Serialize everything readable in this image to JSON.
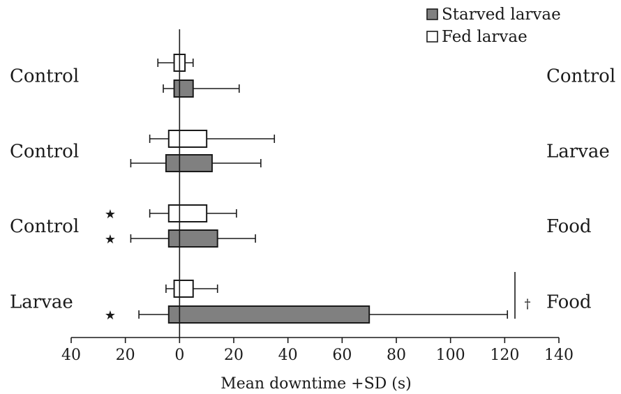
{
  "chart_data": {
    "type": "bar",
    "orientation": "horizontal",
    "xlabel": "Mean downtime +SD (s)",
    "x_ticks": [
      -40,
      -20,
      0,
      20,
      40,
      60,
      80,
      100,
      120,
      140
    ],
    "x_tick_labels": [
      "40",
      "20",
      "0",
      "20",
      "40",
      "60",
      "80",
      "100",
      "120",
      "140"
    ],
    "xlim": [
      -40,
      140
    ],
    "legend": [
      {
        "name": "Starved larvae",
        "fill": "#808080"
      },
      {
        "name": "Fed larvae",
        "fill": "#ffffff"
      }
    ],
    "groups": [
      {
        "left_label": "Control",
        "right_label": "Control",
        "fed": {
          "left": -2,
          "right": 2,
          "err_left": -8,
          "err_right": 5
        },
        "starved": {
          "left": -2,
          "right": 5,
          "err_left": -6,
          "err_right": 22
        }
      },
      {
        "left_label": "Control",
        "right_label": "Larvae",
        "fed": {
          "left": -4,
          "right": 10,
          "err_left": -11,
          "err_right": 35
        },
        "starved": {
          "left": -5,
          "right": 12,
          "err_left": -18,
          "err_right": 30
        }
      },
      {
        "left_label": "Control",
        "right_label": "Food",
        "fed": {
          "left": -4,
          "right": 10,
          "err_left": -11,
          "err_right": 21,
          "star": "★"
        },
        "starved": {
          "left": -4,
          "right": 14,
          "err_left": -18,
          "err_right": 28,
          "star": "★"
        }
      },
      {
        "left_label": "Larvae",
        "right_label": "Food",
        "fed": {
          "left": -2,
          "right": 5,
          "err_left": -5,
          "err_right": 14
        },
        "starved": {
          "left": -4,
          "right": 70,
          "err_left": -15,
          "err_right": 121,
          "star": "★"
        },
        "dagger": "†"
      }
    ]
  }
}
